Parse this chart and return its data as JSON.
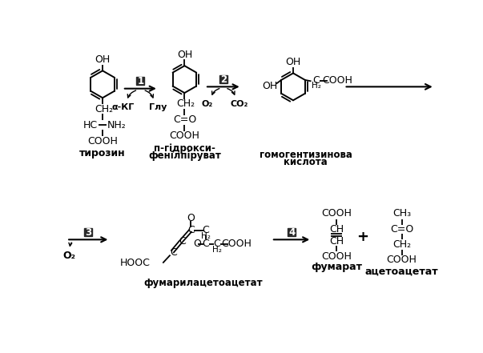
{
  "bg_color": "#ffffff",
  "text_color": "#000000",
  "box_color": "#2a2a2a",
  "box_text_color": "#ffffff",
  "step_labels": [
    "1",
    "2",
    "3",
    "4"
  ],
  "compound_names": [
    "тирозин",
    "п-гідрокси-\nфенілпіруват",
    "гомогентизинова\nкислота",
    "фумарилацетоацетат",
    "фумарат",
    "ацетоацетат"
  ],
  "cofactors_1_left": "α-КГ",
  "cofactors_1_right": "Глу",
  "cofactors_2_left": "O₂",
  "cofactors_2_right": "CO₂",
  "cofactor_3": "O₂",
  "plus_sign": "+"
}
